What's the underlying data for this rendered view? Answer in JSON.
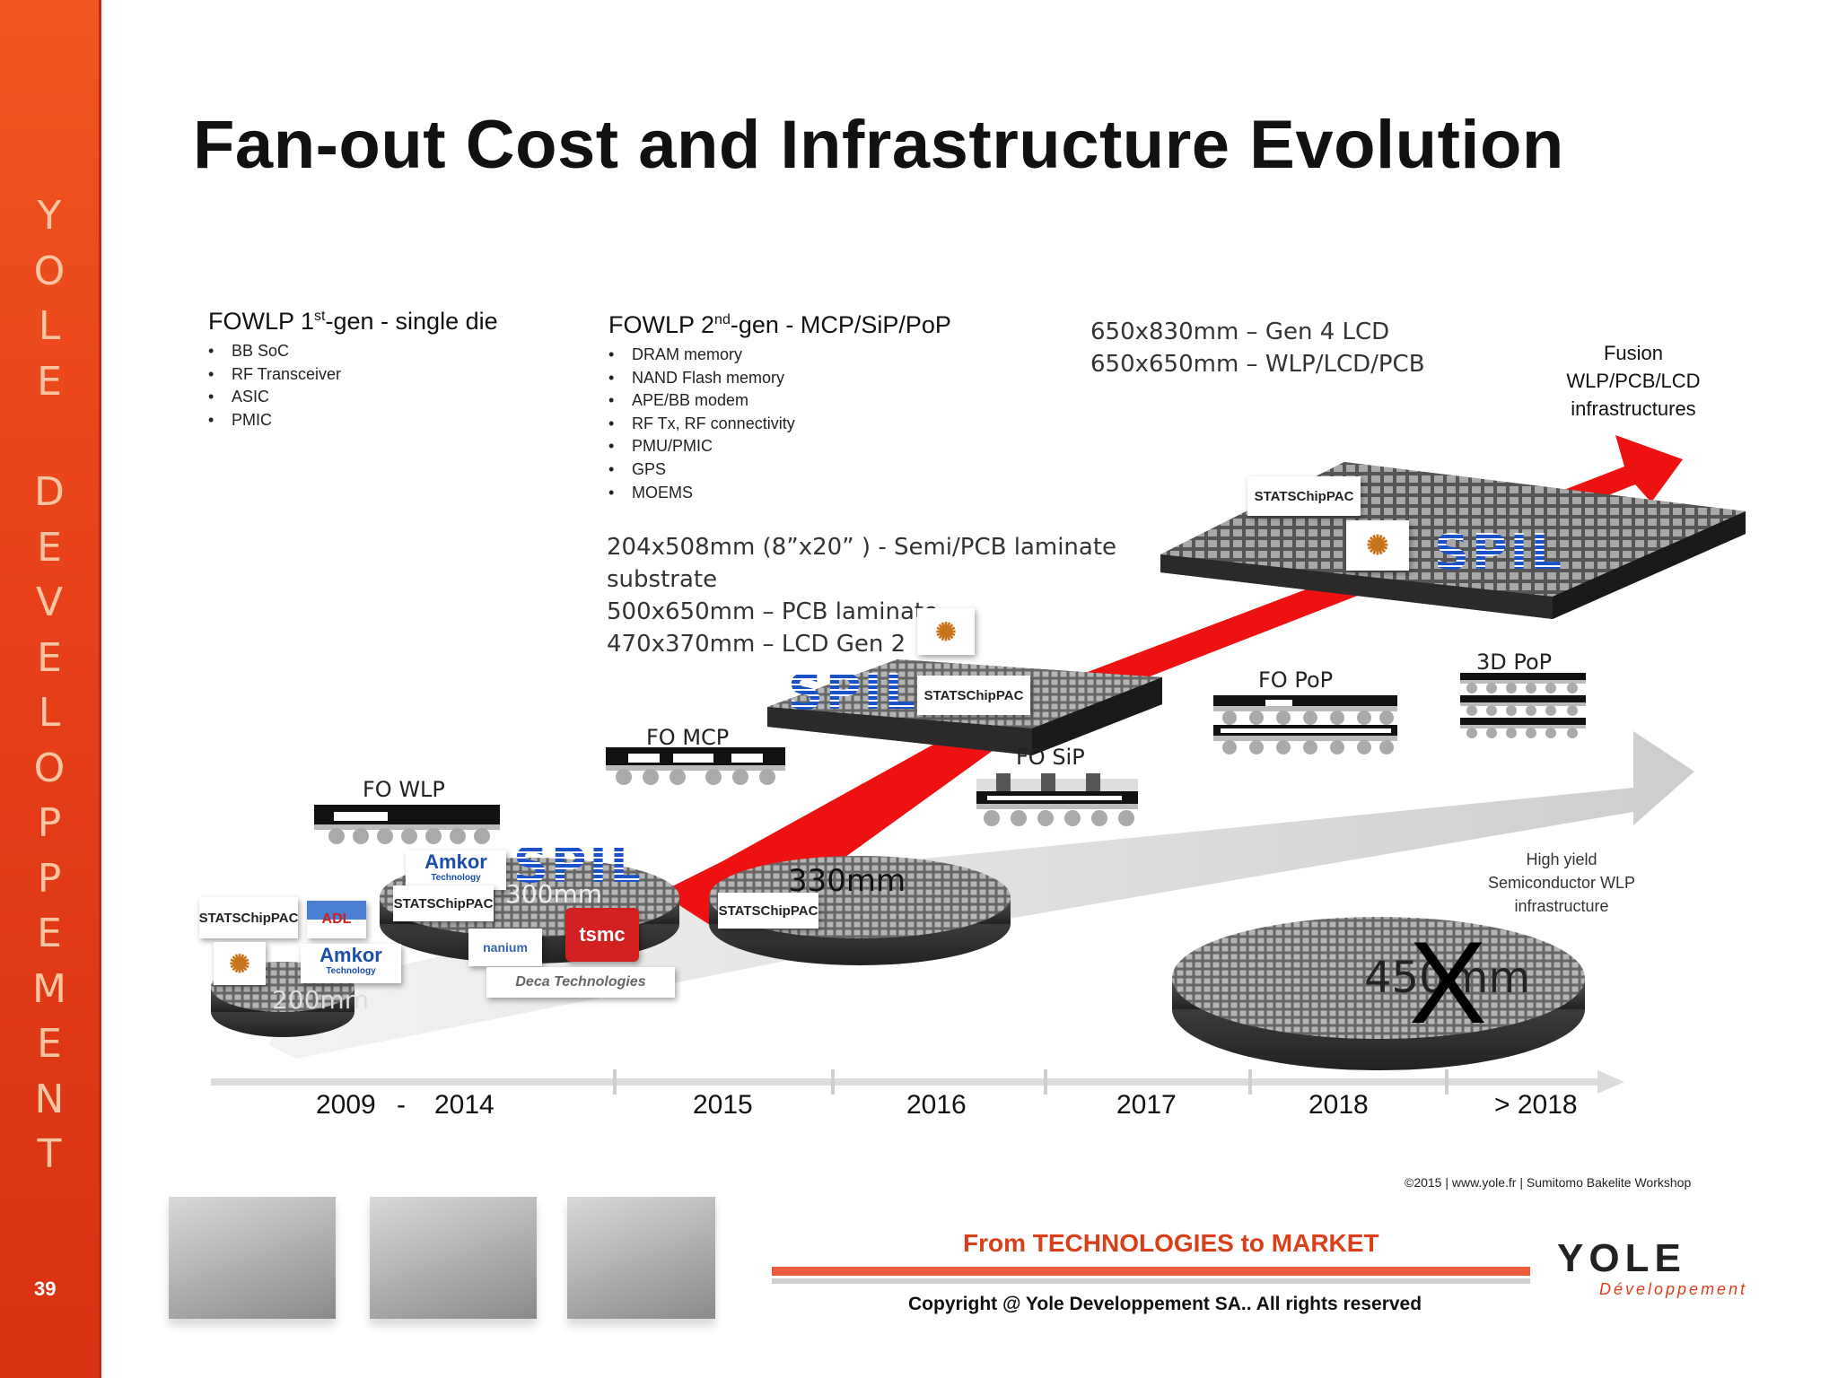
{
  "sidebar": {
    "letters": [
      "Y",
      "O",
      "L",
      "E",
      "",
      "D",
      "E",
      "V",
      "E",
      "L",
      "O",
      "P",
      "P",
      "E",
      "M",
      "E",
      "N",
      "T"
    ],
    "page_number": "39"
  },
  "title": "Fan-out Cost and Infrastructure Evolution",
  "gen1": {
    "title_prefix": "FOWLP 1",
    "title_sup": "st",
    "title_suffix": "-gen - single die",
    "items": [
      "BB SoC",
      "RF Transceiver",
      "ASIC",
      "PMIC"
    ]
  },
  "gen2": {
    "title_prefix": "FOWLP 2",
    "title_sup": "nd",
    "title_suffix": "-gen - MCP/SiP/PoP",
    "items": [
      "DRAM memory",
      "NAND Flash memory",
      "APE/BB modem",
      "RF Tx, RF connectivity",
      "PMU/PMIC",
      "GPS",
      "MOEMS"
    ]
  },
  "panel_sizes_a": [
    "204x508mm (8”x20” ) -  Semi/PCB laminate",
    "substrate",
    "500x650mm – PCB laminate",
    "470x370mm – LCD Gen 2"
  ],
  "panel_sizes_b": [
    "650x830mm – Gen 4 LCD",
    "650x650mm – WLP/LCD/PCB"
  ],
  "fusion": [
    "Fusion",
    "WLP/PCB/LCD",
    "infrastructures"
  ],
  "high_yield": [
    "High yield",
    "Semiconductor WLP",
    "infrastructure"
  ],
  "packages": {
    "fo_wlp": "FO WLP",
    "fo_mcp": "FO MCP",
    "fo_sip": "FO SiP",
    "fo_pop": "FO PoP",
    "pop_3d": "3D PoP"
  },
  "wafers": {
    "w200": "200mm",
    "w300": "300mm",
    "w330": "330mm",
    "w450": "450mm",
    "w450_mark": "X"
  },
  "logos": {
    "stats": "STATSChipPAC",
    "adl": "ADL",
    "amkor": "Amkor",
    "amkor_sub": "Technology",
    "spil": "SPIL",
    "tsmc": "tsmc",
    "nanium": "nanium",
    "deca": "Deca Technologies"
  },
  "timeline": {
    "years": [
      "2009",
      "-",
      "2014",
      "2015",
      "2016",
      "2017",
      "2018",
      "> 2018"
    ]
  },
  "footer": {
    "source": "©2015 | www.yole.fr | Sumitomo Bakelite Workshop",
    "tagline": "From TECHNOLOGIES to MARKET",
    "copyright": "Copyright @ Yole Developpement SA.. All rights reserved",
    "brand": "YOLE",
    "brand_sub": "Développement"
  },
  "colors": {
    "sidebar": "#e8401a",
    "red_arrow": "#ee1111",
    "grey_arrow": "#cfcfcf",
    "tagline": "#d9401a"
  }
}
